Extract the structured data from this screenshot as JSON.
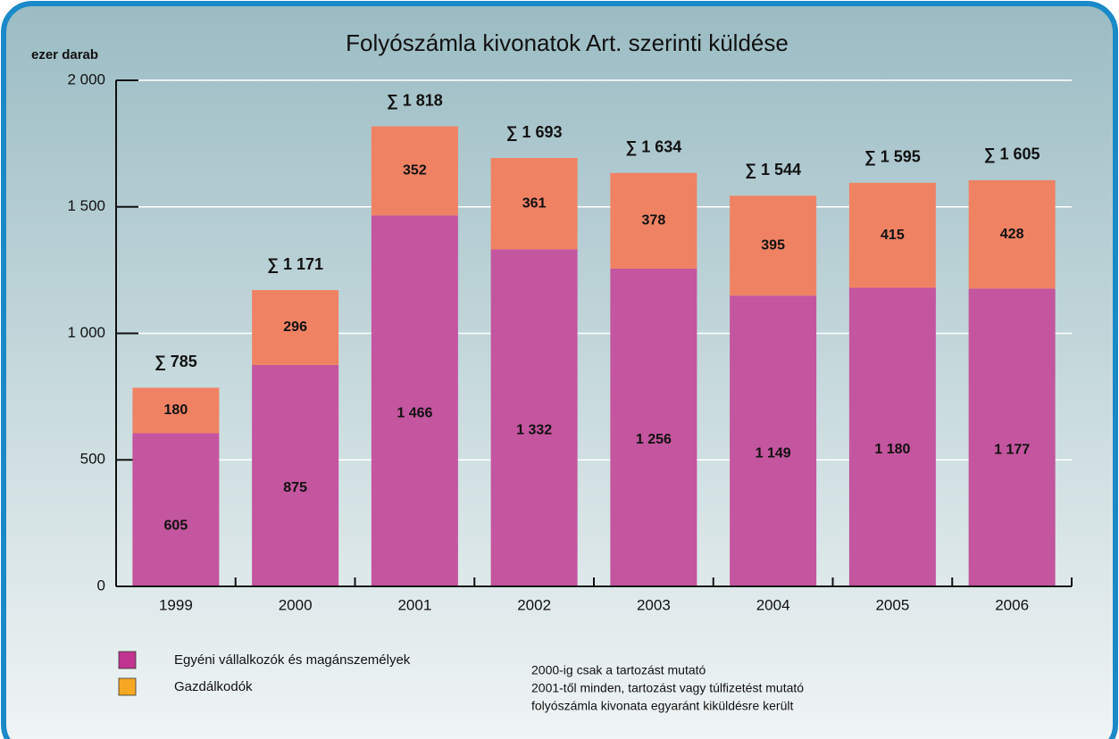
{
  "chart_data": {
    "type": "stacked_bar",
    "title": "Folyószámla kivonatok Art. szerinti küldése",
    "y_label": "ezer darab",
    "categories": [
      "1999",
      "2000",
      "2001",
      "2002",
      "2003",
      "2004",
      "2005",
      "2006"
    ],
    "series": [
      {
        "name": "Egyéni vállalkozók és magánszemélyek",
        "color": "#c4559f",
        "legend_color": "#c0348f",
        "values": [
          605,
          875,
          1466,
          1332,
          1256,
          1149,
          1180,
          1177
        ],
        "value_labels": [
          "605",
          "875",
          "1 466",
          "1 332",
          "1 256",
          "1 149",
          "1 180",
          "1 177"
        ]
      },
      {
        "name": "Gazdálkodók",
        "color": "#f08264",
        "legend_color": "#f7a823",
        "values": [
          180,
          296,
          352,
          361,
          378,
          395,
          415,
          428
        ]
      }
    ],
    "totals": [
      785,
      1171,
      1818,
      1693,
      1634,
      1544,
      1595,
      1605
    ],
    "total_labels": [
      "∑ 785",
      "∑ 1 171",
      "∑ 1 818",
      "∑ 1 693",
      "∑ 1 634",
      "∑ 1 544",
      "∑ 1 595",
      "∑ 1 605"
    ],
    "ylim": [
      0,
      2000
    ],
    "yticks": [
      0,
      500,
      {
        "value": 1000,
        "label": "1 000"
      },
      {
        "value": 1500,
        "label": "1 500"
      },
      {
        "value": 2000,
        "label": "2 000"
      }
    ],
    "grid": true,
    "notes": [
      "2000-ig csak a tartozást mutató",
      "2001-től minden, tartozást vagy túlfizetést mutató",
      "folyószámla kivonata egyaránt kiküldésre került"
    ]
  }
}
